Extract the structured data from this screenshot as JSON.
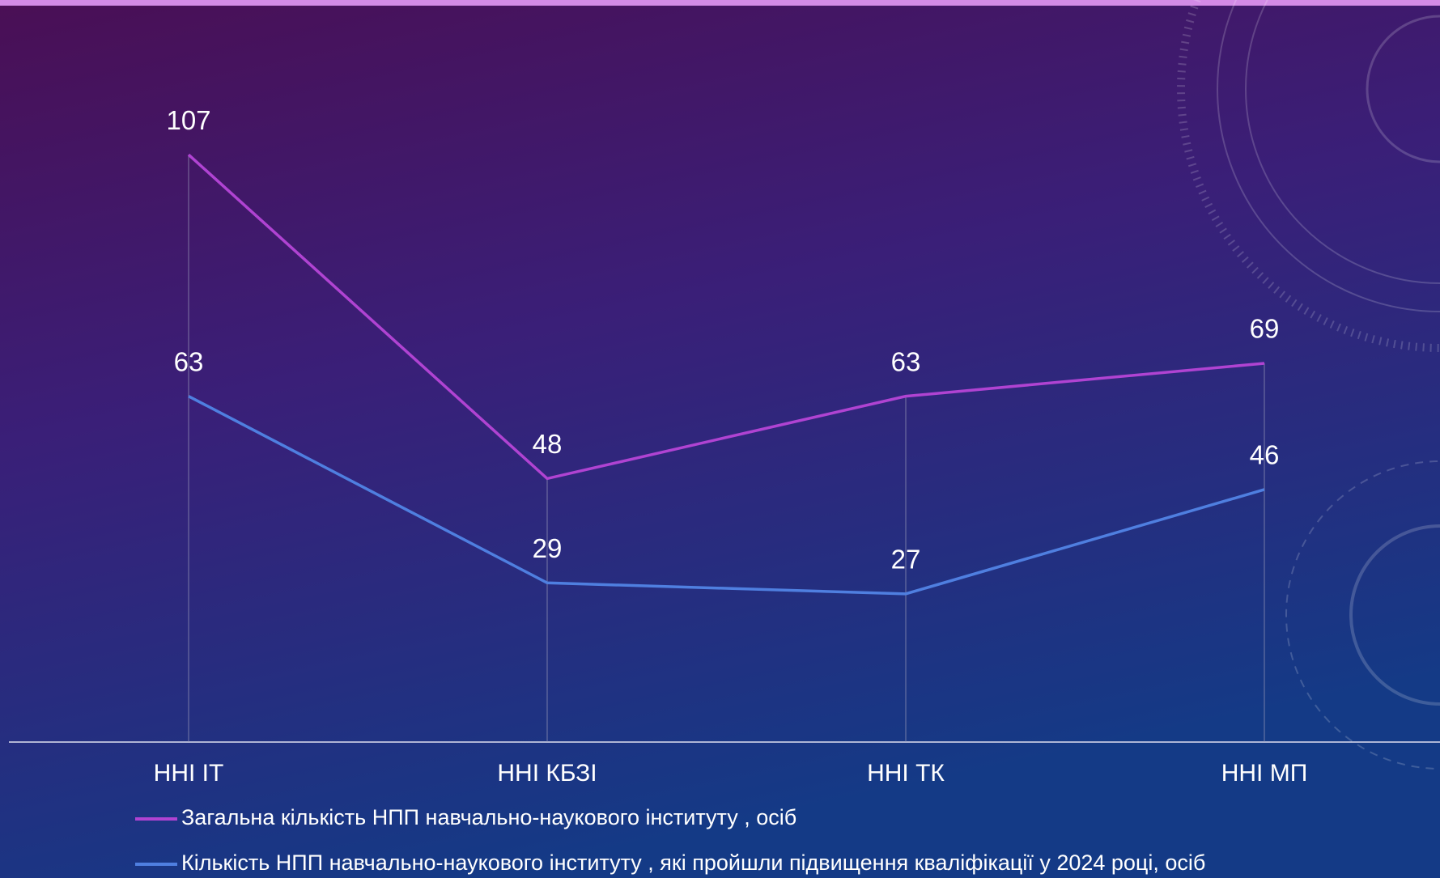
{
  "chart_data": {
    "type": "line",
    "categories": [
      "ННІ ІТ",
      "ННІ КБЗІ",
      "ННІ ТК",
      "ННІ МП"
    ],
    "series": [
      {
        "name": "Загальна кількість НПП навчально-наукового інституту , осіб",
        "color": "#b043d2",
        "values": [
          107,
          48,
          63,
          69
        ]
      },
      {
        "name": "Кількість НПП навчально-наукового інституту , які пройшли підвищення кваліфікації у 2024 році, осіб",
        "color": "#4f7fe0",
        "values": [
          63,
          29,
          27,
          46
        ]
      }
    ],
    "ylim": [
      0,
      120
    ],
    "legend": "bottom"
  }
}
